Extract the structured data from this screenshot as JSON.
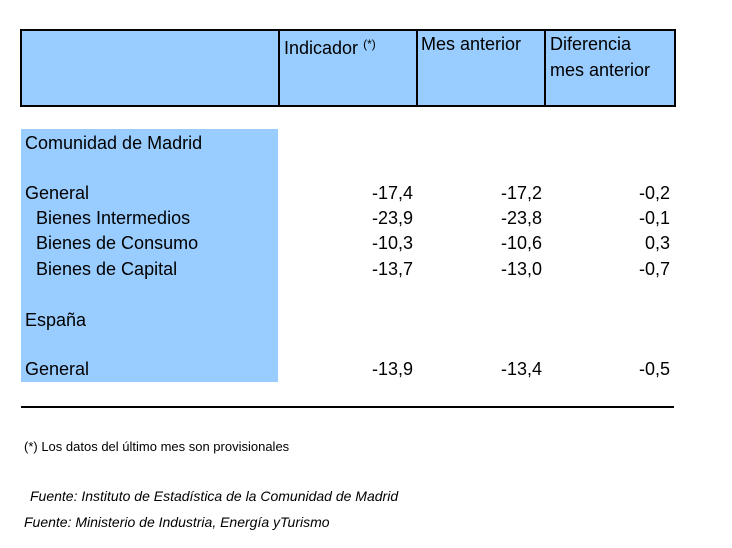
{
  "header": {
    "col_indicator": "Indicador",
    "col_indicator_sup": "(*)",
    "col_prev_month": "Mes anterior",
    "col_diff_line1": "Diferencia",
    "col_diff_line2": "mes anterior"
  },
  "sections": [
    {
      "title": "Comunidad de Madrid",
      "rows": [
        {
          "label": "General",
          "indicador": "-17,4",
          "mes_anterior": "-17,2",
          "diferencia": "-0,2"
        },
        {
          "label": "Bienes Intermedios",
          "indicador": "-23,9",
          "mes_anterior": "-23,8",
          "diferencia": "-0,1"
        },
        {
          "label": "Bienes de Consumo",
          "indicador": "-10,3",
          "mes_anterior": "-10,6",
          "diferencia": "0,3"
        },
        {
          "label": "Bienes de Capital",
          "indicador": "-13,7",
          "mes_anterior": "-13,0",
          "diferencia": "-0,7"
        }
      ]
    },
    {
      "title": "España",
      "rows": [
        {
          "label": "General",
          "indicador": "-13,9",
          "mes_anterior": "-13,4",
          "diferencia": "-0,5"
        }
      ]
    }
  ],
  "footnote": "(*) Los datos del último mes son provisionales",
  "sources": [
    "Fuente: Instituto de Estadística de la Comunidad de Madrid",
    "Fuente: Ministerio de Industria, Energía yTurismo"
  ]
}
